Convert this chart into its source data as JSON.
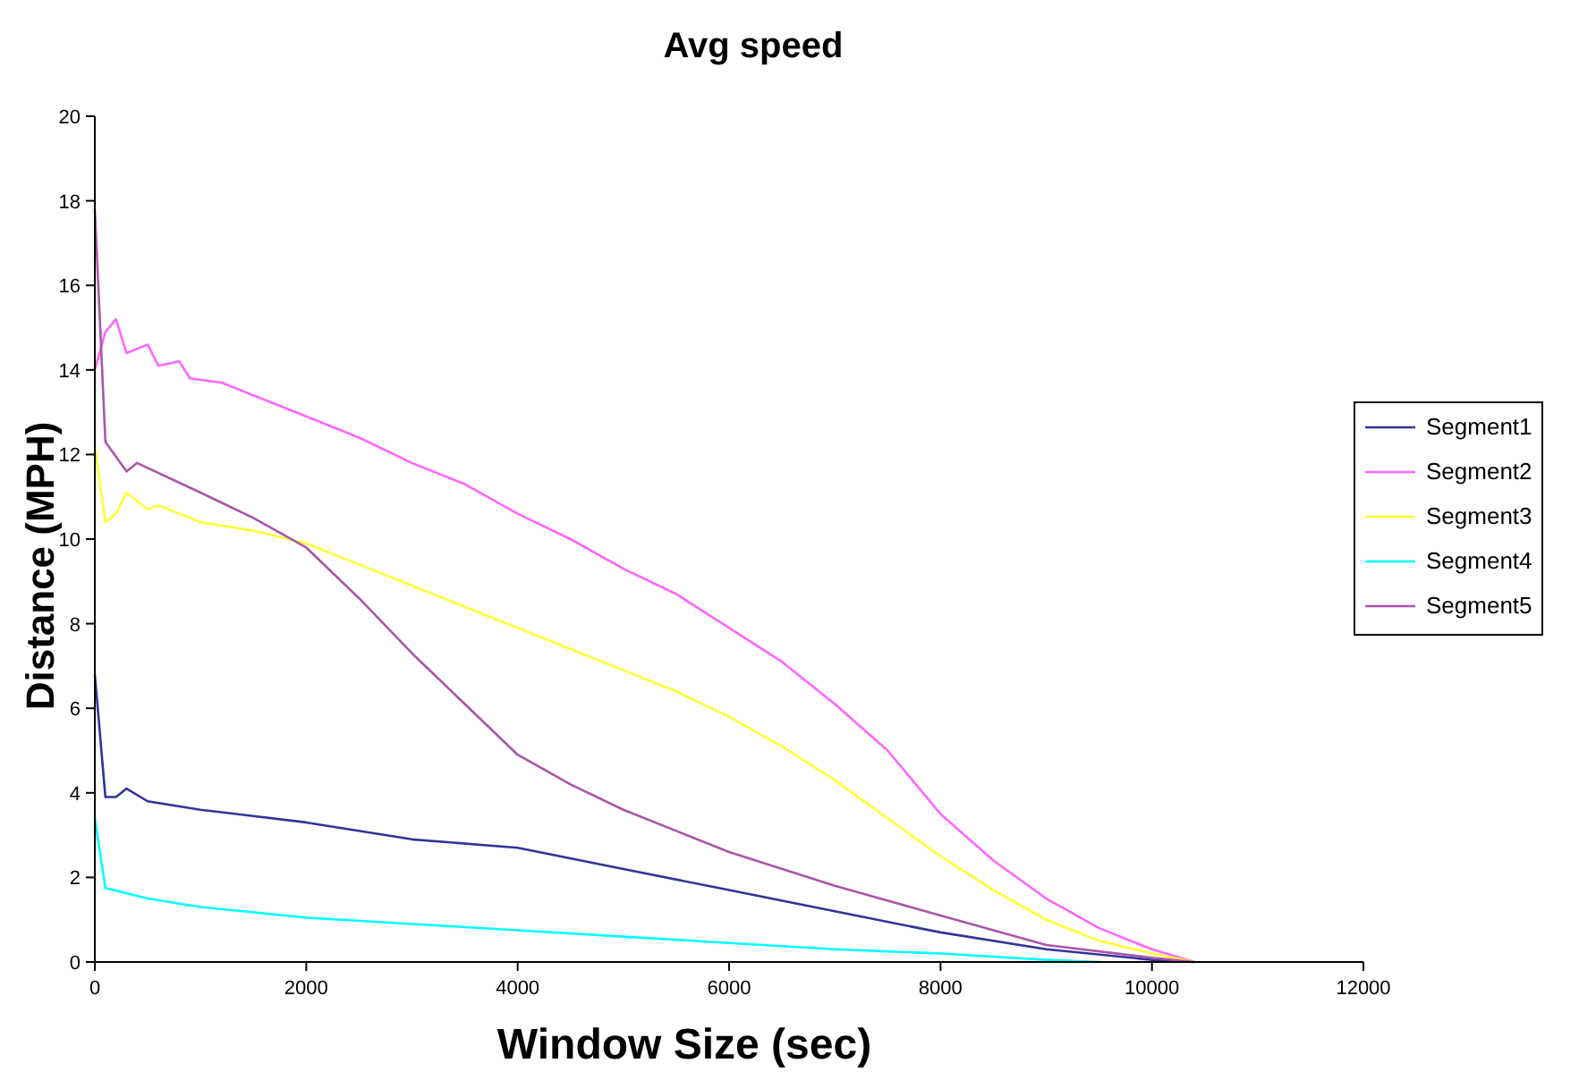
{
  "chart_data": {
    "type": "line",
    "title": "Avg speed",
    "xlabel": "Window Size (sec)",
    "ylabel": "Distance (MPH)",
    "xlim": [
      0,
      12000
    ],
    "xticks": [
      0,
      2000,
      4000,
      6000,
      8000,
      10000,
      12000
    ],
    "ylim": [
      0,
      20
    ],
    "yticks": [
      0,
      2,
      4,
      6,
      8,
      10,
      12,
      14,
      16,
      18,
      20
    ],
    "grid": false,
    "legend": "right",
    "marker": "none",
    "line_style": "solid",
    "series": [
      {
        "name": "Segment1",
        "color": "#333399",
        "x": [
          0,
          100,
          200,
          300,
          500,
          1000,
          2000,
          3000,
          4000,
          5000,
          6000,
          7000,
          8000,
          9000,
          10000,
          10400
        ],
        "values": [
          6.8,
          3.9,
          3.9,
          4.1,
          3.8,
          3.6,
          3.3,
          2.9,
          2.7,
          2.2,
          1.7,
          1.2,
          0.7,
          0.3,
          0.05,
          0
        ]
      },
      {
        "name": "Segment2",
        "color": "#ff66ff",
        "x": [
          0,
          100,
          200,
          300,
          500,
          600,
          800,
          900,
          1200,
          1500,
          2000,
          2500,
          3000,
          3500,
          4000,
          4500,
          5000,
          5500,
          6000,
          6500,
          7000,
          7500,
          8000,
          8500,
          9000,
          9500,
          10000,
          10400
        ],
        "values": [
          14,
          14.9,
          15.2,
          14.4,
          14.6,
          14.1,
          14.2,
          13.8,
          13.7,
          13.4,
          12.9,
          12.4,
          11.8,
          11.3,
          10.6,
          10,
          9.3,
          8.7,
          7.9,
          7.1,
          6.1,
          5,
          3.5,
          2.4,
          1.5,
          0.8,
          0.3,
          0
        ]
      },
      {
        "name": "Segment3",
        "color": "#ffff33",
        "x": [
          0,
          100,
          200,
          300,
          500,
          600,
          1000,
          1500,
          2000,
          2500,
          3000,
          3500,
          4000,
          4500,
          5000,
          5500,
          6000,
          6500,
          7000,
          7500,
          8000,
          8500,
          9000,
          9500,
          10000,
          10400
        ],
        "values": [
          12.2,
          10.4,
          10.6,
          11.1,
          10.7,
          10.8,
          10.4,
          10.2,
          9.9,
          9.4,
          8.9,
          8.4,
          7.9,
          7.4,
          6.9,
          6.4,
          5.8,
          5.1,
          4.3,
          3.4,
          2.5,
          1.7,
          1,
          0.5,
          0.2,
          0
        ]
      },
      {
        "name": "Segment4",
        "color": "#00ffff",
        "x": [
          0,
          100,
          500,
          1000,
          2000,
          3000,
          4000,
          5000,
          6000,
          7000,
          8000,
          9000,
          9500
        ],
        "values": [
          3.4,
          1.75,
          1.5,
          1.3,
          1.05,
          0.9,
          0.75,
          0.6,
          0.45,
          0.3,
          0.2,
          0.05,
          0
        ]
      },
      {
        "name": "Segment5",
        "color": "#aa55aa",
        "x": [
          0,
          100,
          300,
          400,
          1000,
          1500,
          2000,
          2500,
          3000,
          3500,
          4000,
          4500,
          5000,
          5500,
          6000,
          7000,
          8000,
          9000,
          10000,
          10400
        ],
        "values": [
          17.8,
          12.3,
          11.6,
          11.8,
          11.1,
          10.5,
          9.8,
          8.6,
          7.3,
          6.1,
          4.9,
          4.2,
          3.6,
          3.1,
          2.6,
          1.8,
          1.1,
          0.4,
          0.1,
          0
        ]
      }
    ]
  }
}
